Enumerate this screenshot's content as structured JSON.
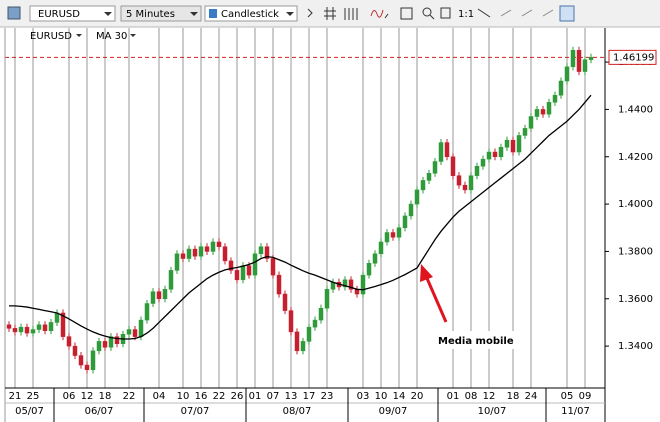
{
  "toolbar": {
    "symbol": "EURUSD",
    "interval": "5 Minutes",
    "chart_style": "Candlestick",
    "zoom": "1:1"
  },
  "chart_data": {
    "type": "candlestick",
    "symbol": "EURUSD",
    "ma_name": "MA 30",
    "annotation": "Media mobile",
    "up_color": "#2f9a3a",
    "down_color": "#c62030",
    "ma_color": "#000000",
    "annotation_color": "#e0141e",
    "ylim": [
      1.3223,
      1.4744
    ],
    "yticks": [
      {
        "value": 1.46,
        "label": "1.4600"
      },
      {
        "value": 1.44,
        "label": "1.4400"
      },
      {
        "value": 1.42,
        "label": "1.4200"
      },
      {
        "value": 1.4,
        "label": "1.4000"
      },
      {
        "value": 1.38,
        "label": "1.3800"
      },
      {
        "value": 1.36,
        "label": "1.3600"
      },
      {
        "value": 1.34,
        "label": "1.3400"
      }
    ],
    "last_price": 1.46199,
    "categories": [
      null,
      "21",
      null,
      null,
      "25",
      null,
      null,
      null,
      null,
      null,
      "06",
      null,
      null,
      "12",
      null,
      null,
      "18",
      null,
      null,
      null,
      "22",
      null,
      null,
      null,
      null,
      "04",
      null,
      null,
      null,
      "10",
      null,
      null,
      "16",
      null,
      null,
      "22",
      null,
      null,
      "26",
      null,
      null,
      "01",
      null,
      null,
      "07",
      null,
      null,
      "13",
      null,
      null,
      "17",
      null,
      null,
      "23",
      null,
      null,
      null,
      null,
      null,
      "03",
      null,
      null,
      "10",
      null,
      null,
      "14",
      null,
      null,
      "20",
      null,
      null,
      null,
      null,
      null,
      "01",
      null,
      null,
      "08",
      null,
      null,
      "12",
      null,
      null,
      null,
      "18",
      null,
      null,
      "24",
      null,
      null,
      null,
      null,
      null,
      "05",
      null,
      null,
      "09",
      null
    ],
    "month_ticks": [
      {
        "value": 0,
        "label": "05/07"
      },
      {
        "value": 8,
        "label": "06/07"
      },
      {
        "value": 23,
        "label": "07/07"
      },
      {
        "value": 40,
        "label": "08/07"
      },
      {
        "value": 57,
        "label": "09/07"
      },
      {
        "value": 72,
        "label": "10/07"
      },
      {
        "value": 90,
        "label": "11/07"
      }
    ],
    "candles": [
      [
        1.349,
        1.3505,
        1.346,
        1.3475
      ],
      [
        1.3475,
        1.349,
        1.3445,
        1.346
      ],
      [
        1.346,
        1.3495,
        1.3445,
        1.348
      ],
      [
        1.348,
        1.3495,
        1.344,
        1.3455
      ],
      [
        1.3455,
        1.3485,
        1.344,
        1.347
      ],
      [
        1.347,
        1.3505,
        1.3455,
        1.349
      ],
      [
        1.349,
        1.3505,
        1.345,
        1.3465
      ],
      [
        1.3465,
        1.3515,
        1.345,
        1.35
      ],
      [
        1.35,
        1.3555,
        1.3485,
        1.354
      ],
      [
        1.354,
        1.3555,
        1.3425,
        1.344
      ],
      [
        1.344,
        1.3455,
        1.3385,
        1.34
      ],
      [
        1.34,
        1.3415,
        1.3345,
        1.336
      ],
      [
        1.336,
        1.3375,
        1.3305,
        1.332
      ],
      [
        1.332,
        1.3335,
        1.3285,
        1.33
      ],
      [
        1.33,
        1.3395,
        1.3285,
        1.338
      ],
      [
        1.338,
        1.3435,
        1.3365,
        1.342
      ],
      [
        1.342,
        1.3435,
        1.338,
        1.3395
      ],
      [
        1.3395,
        1.3455,
        1.338,
        1.344
      ],
      [
        1.344,
        1.3455,
        1.3395,
        1.341
      ],
      [
        1.341,
        1.3465,
        1.3395,
        1.345
      ],
      [
        1.345,
        1.3485,
        1.3435,
        1.347
      ],
      [
        1.347,
        1.3485,
        1.3425,
        1.344
      ],
      [
        1.344,
        1.3525,
        1.3425,
        1.351
      ],
      [
        1.351,
        1.3595,
        1.3495,
        1.358
      ],
      [
        1.358,
        1.3645,
        1.3565,
        1.363
      ],
      [
        1.363,
        1.3645,
        1.3585,
        1.36
      ],
      [
        1.36,
        1.3655,
        1.3585,
        1.364
      ],
      [
        1.364,
        1.3735,
        1.3625,
        1.372
      ],
      [
        1.372,
        1.3805,
        1.3705,
        1.379
      ],
      [
        1.379,
        1.3805,
        1.3755,
        1.377
      ],
      [
        1.377,
        1.3825,
        1.3755,
        1.381
      ],
      [
        1.381,
        1.3825,
        1.3765,
        1.378
      ],
      [
        1.378,
        1.3835,
        1.3765,
        1.382
      ],
      [
        1.382,
        1.3835,
        1.3785,
        1.38
      ],
      [
        1.38,
        1.3855,
        1.3785,
        1.384
      ],
      [
        1.384,
        1.3855,
        1.3805,
        1.382
      ],
      [
        1.382,
        1.3835,
        1.3745,
        1.376
      ],
      [
        1.376,
        1.3775,
        1.3705,
        1.372
      ],
      [
        1.372,
        1.3735,
        1.3665,
        1.368
      ],
      [
        1.368,
        1.3755,
        1.3665,
        1.374
      ],
      [
        1.374,
        1.3755,
        1.3685,
        1.37
      ],
      [
        1.37,
        1.3805,
        1.3685,
        1.379
      ],
      [
        1.379,
        1.3835,
        1.3775,
        1.382
      ],
      [
        1.382,
        1.3835,
        1.3755,
        1.377
      ],
      [
        1.377,
        1.3785,
        1.3685,
        1.37
      ],
      [
        1.37,
        1.3715,
        1.3605,
        1.362
      ],
      [
        1.362,
        1.3635,
        1.3535,
        1.355
      ],
      [
        1.355,
        1.3565,
        1.3445,
        1.346
      ],
      [
        1.346,
        1.3475,
        1.3365,
        1.338
      ],
      [
        1.338,
        1.3435,
        1.3365,
        1.342
      ],
      [
        1.342,
        1.3495,
        1.3405,
        1.348
      ],
      [
        1.348,
        1.3525,
        1.3465,
        1.351
      ],
      [
        1.351,
        1.3575,
        1.3495,
        1.356
      ],
      [
        1.356,
        1.3655,
        1.3545,
        1.364
      ],
      [
        1.364,
        1.3685,
        1.3625,
        1.367
      ],
      [
        1.367,
        1.3685,
        1.3635,
        1.365
      ],
      [
        1.365,
        1.3695,
        1.3635,
        1.368
      ],
      [
        1.368,
        1.3695,
        1.3625,
        1.364
      ],
      [
        1.364,
        1.3655,
        1.3605,
        1.362
      ],
      [
        1.362,
        1.3715,
        1.3605,
        1.37
      ],
      [
        1.37,
        1.3765,
        1.3685,
        1.375
      ],
      [
        1.375,
        1.3805,
        1.3735,
        1.379
      ],
      [
        1.379,
        1.3855,
        1.3775,
        1.384
      ],
      [
        1.384,
        1.3895,
        1.3825,
        1.388
      ],
      [
        1.388,
        1.3895,
        1.3845,
        1.386
      ],
      [
        1.386,
        1.3915,
        1.3845,
        1.39
      ],
      [
        1.39,
        1.3965,
        1.3885,
        1.395
      ],
      [
        1.395,
        1.4015,
        1.3935,
        1.4
      ],
      [
        1.4,
        1.4075,
        1.3985,
        1.406
      ],
      [
        1.406,
        1.4115,
        1.4045,
        1.41
      ],
      [
        1.41,
        1.4145,
        1.4085,
        1.413
      ],
      [
        1.413,
        1.4195,
        1.4115,
        1.418
      ],
      [
        1.418,
        1.4275,
        1.4165,
        1.426
      ],
      [
        1.426,
        1.4275,
        1.4185,
        1.42
      ],
      [
        1.42,
        1.4215,
        1.4105,
        1.412
      ],
      [
        1.412,
        1.4135,
        1.4065,
        1.408
      ],
      [
        1.408,
        1.4095,
        1.4045,
        1.406
      ],
      [
        1.406,
        1.4135,
        1.4045,
        1.412
      ],
      [
        1.412,
        1.4175,
        1.4105,
        1.416
      ],
      [
        1.416,
        1.4205,
        1.4145,
        1.419
      ],
      [
        1.419,
        1.4235,
        1.4175,
        1.422
      ],
      [
        1.422,
        1.4235,
        1.4185,
        1.42
      ],
      [
        1.42,
        1.4255,
        1.4185,
        1.424
      ],
      [
        1.424,
        1.4285,
        1.4225,
        1.427
      ],
      [
        1.427,
        1.4285,
        1.4205,
        1.422
      ],
      [
        1.422,
        1.4305,
        1.4205,
        1.429
      ],
      [
        1.429,
        1.4335,
        1.4275,
        1.432
      ],
      [
        1.432,
        1.4385,
        1.4305,
        1.437
      ],
      [
        1.437,
        1.4415,
        1.4355,
        1.44
      ],
      [
        1.44,
        1.4415,
        1.4365,
        1.438
      ],
      [
        1.438,
        1.4445,
        1.4365,
        1.443
      ],
      [
        1.443,
        1.4475,
        1.4415,
        1.446
      ],
      [
        1.446,
        1.4535,
        1.4445,
        1.452
      ],
      [
        1.452,
        1.4595,
        1.4505,
        1.458
      ],
      [
        1.458,
        1.4665,
        1.4565,
        1.465
      ],
      [
        1.465,
        1.4665,
        1.4545,
        1.456
      ],
      [
        1.456,
        1.4625,
        1.4545,
        1.461
      ],
      [
        1.461,
        1.4635,
        1.4595,
        1.462
      ]
    ],
    "ma": [
      1.357,
      1.357,
      1.3568,
      1.3565,
      1.356,
      1.3555,
      1.355,
      1.3545,
      1.354,
      1.3528,
      1.3515,
      1.35,
      1.3485,
      1.3472,
      1.346,
      1.345,
      1.3442,
      1.3436,
      1.3432,
      1.343,
      1.343,
      1.3432,
      1.344,
      1.3455,
      1.3475,
      1.35,
      1.3525,
      1.355,
      1.3575,
      1.36,
      1.3625,
      1.3645,
      1.3665,
      1.3685,
      1.37,
      1.3712,
      1.3722,
      1.3728,
      1.3732,
      1.3738,
      1.3745,
      1.3755,
      1.377,
      1.3778,
      1.3775,
      1.3765,
      1.3755,
      1.3742,
      1.373,
      1.3718,
      1.3708,
      1.37,
      1.369,
      1.368,
      1.367,
      1.3662,
      1.3655,
      1.3648,
      1.364,
      1.3638,
      1.3645,
      1.3652,
      1.366,
      1.3668,
      1.3678,
      1.369,
      1.3702,
      1.3716,
      1.373,
      1.377,
      1.381,
      1.385,
      1.3885,
      1.3915,
      1.3945,
      1.397,
      1.399,
      1.401,
      1.403,
      1.405,
      1.407,
      1.409,
      1.411,
      1.413,
      1.415,
      1.417,
      1.419,
      1.4215,
      1.424,
      1.4265,
      1.429,
      1.431,
      1.433,
      1.435,
      1.4375,
      1.44,
      1.443,
      1.446
    ]
  }
}
